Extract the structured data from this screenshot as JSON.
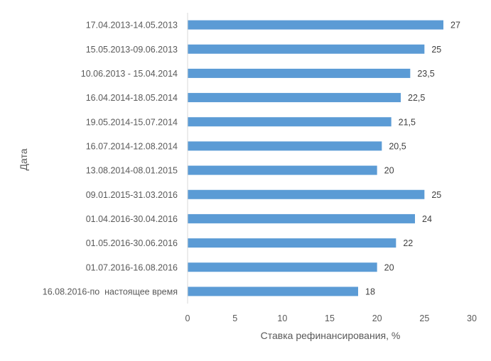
{
  "colors": {
    "bar": "#5B9BD5",
    "axis": "#D9D9D9",
    "text": "#595959",
    "label": "#404040"
  },
  "chart_data": {
    "type": "bar",
    "orientation": "horizontal",
    "ylabel": "Дата",
    "xlabel": "Ставка рефинансирования, %",
    "xlim": [
      0,
      30
    ],
    "xticks": [
      0,
      5,
      10,
      15,
      20,
      25,
      30
    ],
    "xtick_labels": [
      "0",
      "5",
      "10",
      "15",
      "20",
      "25",
      "30"
    ],
    "grid": false,
    "categories": [
      "17.04.2013-14.05.2013",
      "15.05.2013-09.06.2013",
      "10.06.2013 - 15.04.2014",
      "16.04.2014-18.05.2014",
      "19.05.2014-15.07.2014",
      "16.07.2014-12.08.2014",
      "13.08.2014-08.01.2015",
      "09.01.2015-31.03.2016",
      "01.04.2016-30.04.2016",
      "01.05.2016-30.06.2016",
      "01.07.2016-16.08.2016",
      "16.08.2016-по  настоящее время"
    ],
    "values": [
      27,
      25,
      23.5,
      22.5,
      21.5,
      20.5,
      20,
      25,
      24,
      22,
      20,
      18
    ],
    "value_labels": [
      "27",
      "25",
      "23,5",
      "22,5",
      "21,5",
      "20,5",
      "20",
      "25",
      "24",
      "22",
      "20",
      "18"
    ]
  }
}
